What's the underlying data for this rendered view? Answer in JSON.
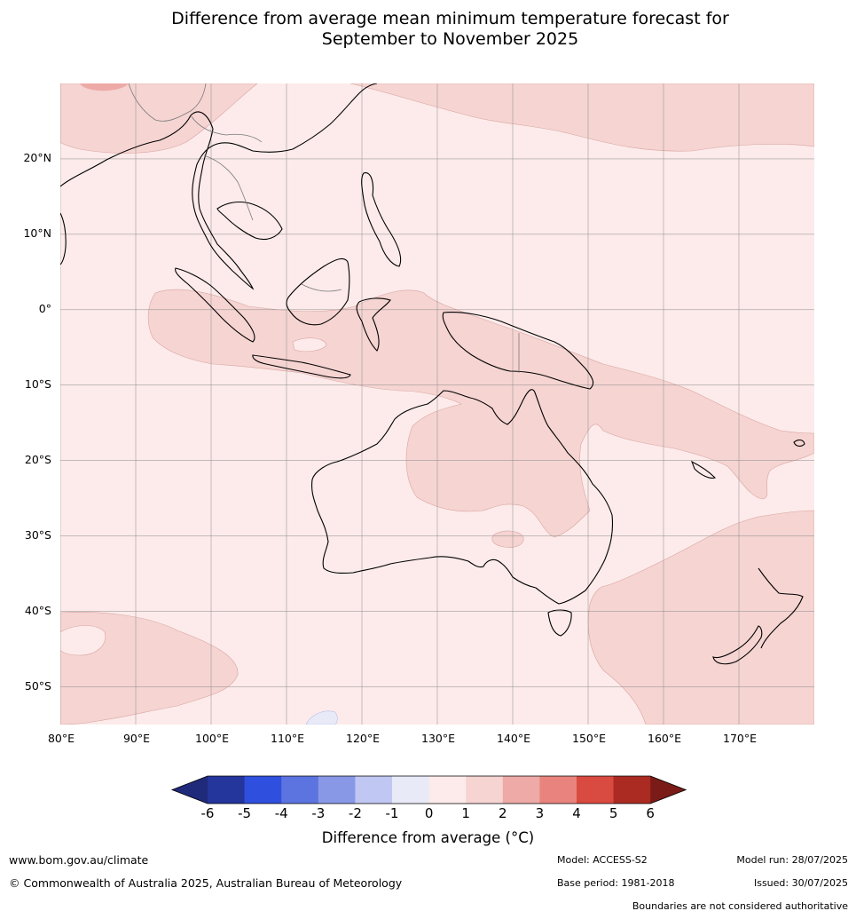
{
  "title": {
    "line1": "Difference from average mean minimum temperature forecast for",
    "line2": "September to November 2025"
  },
  "map": {
    "lat_labels": [
      "20°N",
      "10°N",
      "0°",
      "10°S",
      "20°S",
      "30°S",
      "40°S",
      "50°S"
    ],
    "lon_labels": [
      "80°E",
      "90°E",
      "100°E",
      "110°E",
      "120°E",
      "130°E",
      "140°E",
      "150°E",
      "160°E",
      "170°E"
    ],
    "extent": {
      "lon": [
        80,
        180
      ],
      "lat": [
        -55,
        30
      ]
    }
  },
  "colorbar": {
    "title": "Difference from average (°C)",
    "ticks": [
      "-6",
      "-5",
      "-4",
      "-3",
      "-2",
      "-1",
      "0",
      "1",
      "2",
      "3",
      "4",
      "5",
      "6"
    ],
    "colors": [
      "#24359b",
      "#2f4fde",
      "#5c74e0",
      "#8898e6",
      "#c0c7f2",
      "#e8eaf8",
      "#fcebea",
      "#f5d4d2",
      "#eeaaa6",
      "#e8847d",
      "#d94a40",
      "#ab2a22"
    ],
    "under_color": "#1f2a7a",
    "over_color": "#7a1b17"
  },
  "footer": {
    "website": "www.bom.gov.au/climate",
    "copyright": "© Commonwealth of Australia 2025, Australian Bureau of Meteorology",
    "model": "Model: ACCESS-S2",
    "base_period": "Base period: 1981-2018",
    "model_run": "Model run: 28/07/2025",
    "issued": "Issued: 30/07/2025",
    "disclaimer": "Boundaries are not considered authoritative"
  }
}
